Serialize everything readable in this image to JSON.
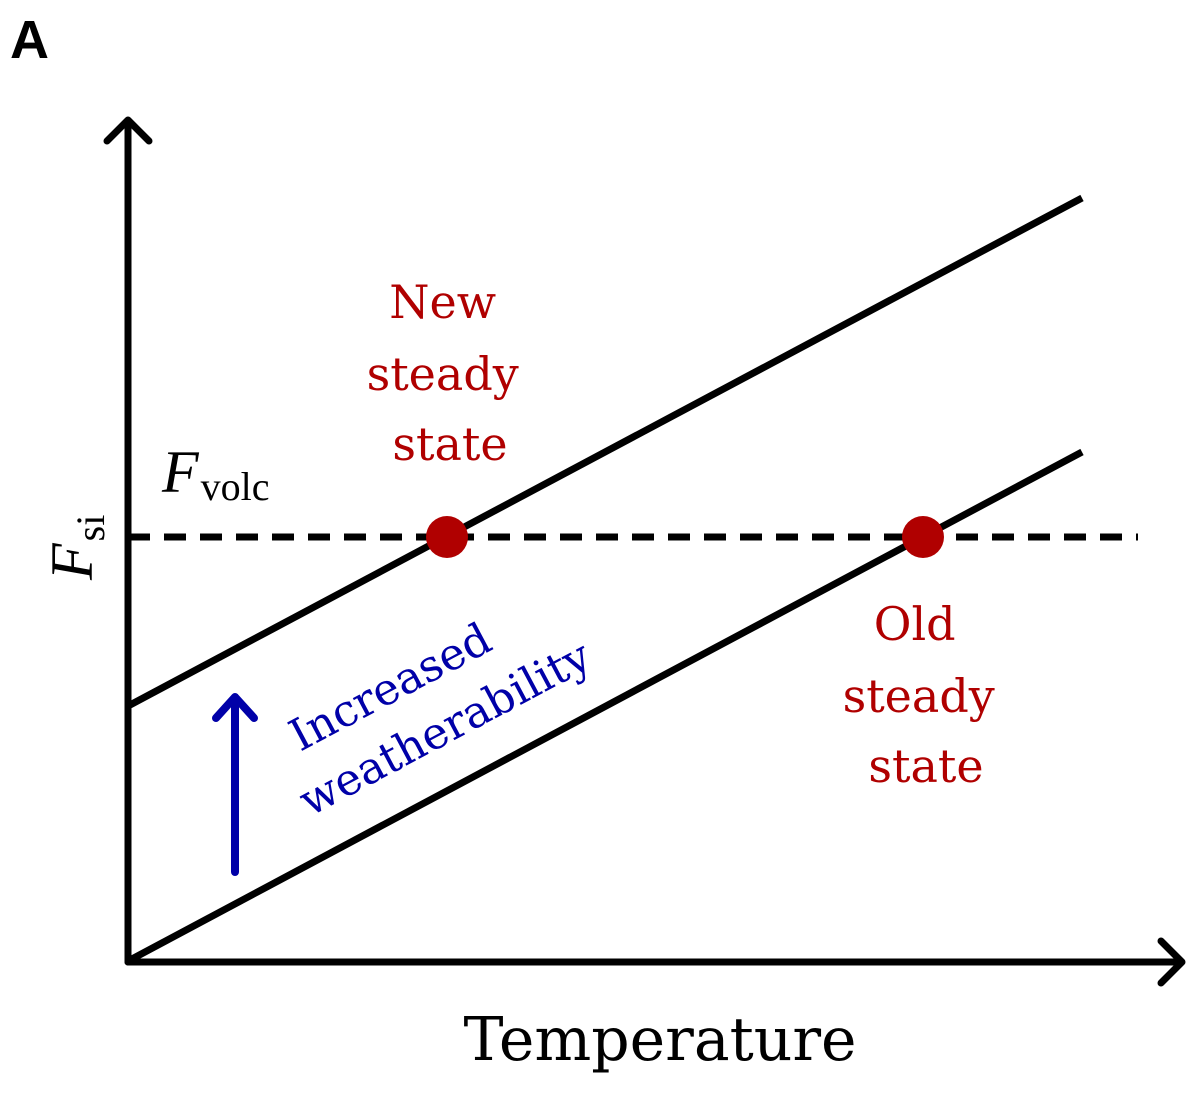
{
  "panel_letter": "A",
  "axes": {
    "y_label_main": "F",
    "y_label_sub": "si",
    "x_label": "Temperature"
  },
  "reference_line": {
    "label_main": "F",
    "label_sub": "volc",
    "style": "dashed"
  },
  "lines": [
    {
      "id": "upper",
      "color": "#000000"
    },
    {
      "id": "lower",
      "color": "#000000"
    }
  ],
  "states": {
    "new": {
      "lines": [
        "New",
        "steady",
        "state"
      ],
      "color": "#b00000"
    },
    "old": {
      "lines": [
        "Old",
        "steady",
        "state"
      ],
      "color": "#b00000"
    }
  },
  "shift_annotation": {
    "lines": [
      "Increased",
      "weatherability"
    ],
    "color": "#0000a8"
  },
  "colors": {
    "axes": "#000000",
    "state_marker": "#b00000",
    "annotation": "#0000a8"
  }
}
